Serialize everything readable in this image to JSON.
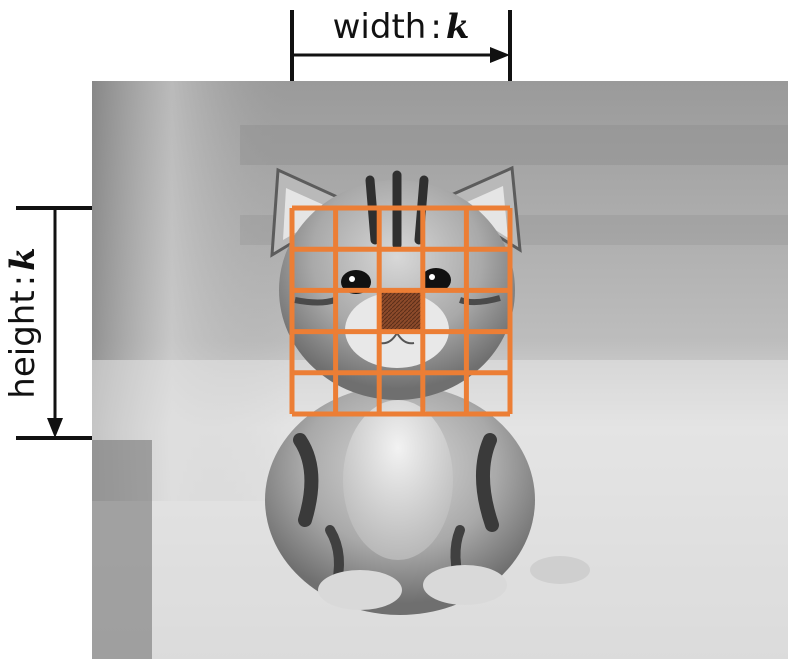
{
  "width_label": {
    "text": "width",
    "separator": ":",
    "variable": "k"
  },
  "height_label": {
    "text": "height",
    "separator": ":",
    "variable": "k"
  },
  "kernel_grid": {
    "rows": 5,
    "cols": 5,
    "center_row": 2,
    "center_col": 2
  },
  "colors": {
    "grid": "#ec7e35",
    "center_cell": "#8c4a2a",
    "dimension_line": "#111111"
  },
  "image_subject": "kitten-photo"
}
